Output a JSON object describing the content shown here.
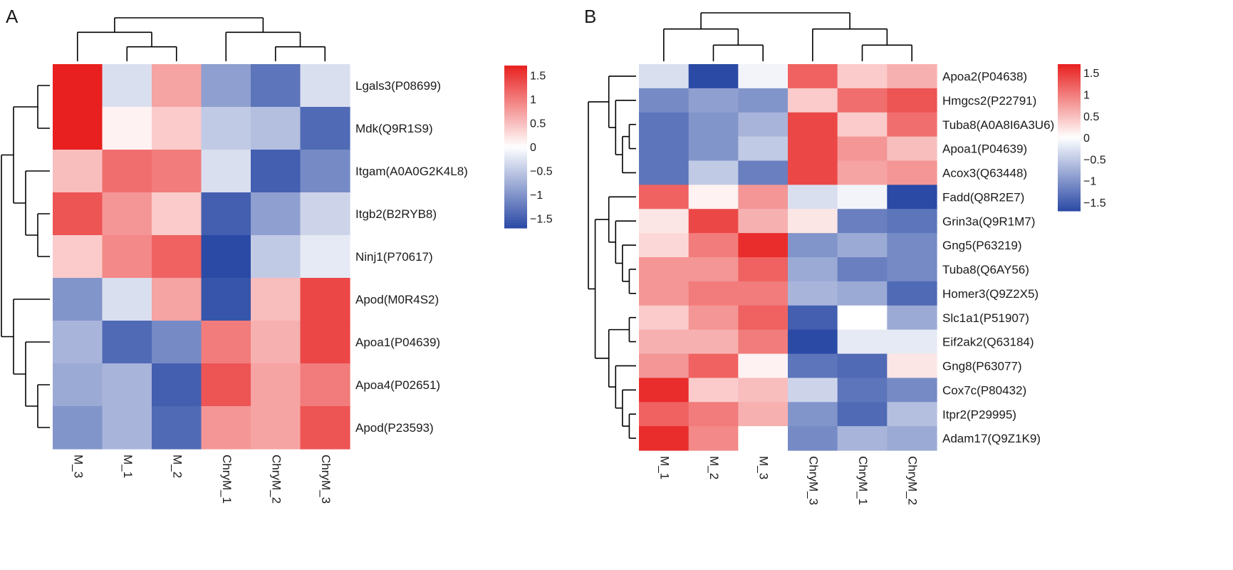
{
  "colors": {
    "low": "#2b4aa5",
    "mid": "#ffffff",
    "high": "#e8201f"
  },
  "chart_data": [
    {
      "type": "heatmap",
      "panel_label": "A",
      "columns": [
        "M_3",
        "M_1",
        "M_2",
        "ChryM_1",
        "ChryM_2",
        "ChryM_3"
      ],
      "rows": [
        "Lgals3(P08699)",
        "Mdk(Q9R1S9)",
        "Itgam(A0A0G2K4L8)",
        "Itgb2(B2RYB8)",
        "Ninj1(P70617)",
        "Apod(M0R4S2)",
        "Apoa1(P04639)",
        "Apoa4(P02651)",
        "Apod(P23593)"
      ],
      "values": [
        [
          1.7,
          -0.3,
          0.7,
          -0.9,
          -1.3,
          -0.3
        ],
        [
          1.7,
          0.1,
          0.4,
          -0.5,
          -0.6,
          -1.4
        ],
        [
          0.5,
          1.1,
          1.0,
          -0.3,
          -1.5,
          -1.1
        ],
        [
          1.3,
          0.8,
          0.4,
          -1.5,
          -0.9,
          -0.4
        ],
        [
          0.4,
          0.9,
          1.2,
          -1.7,
          -0.5,
          -0.2
        ],
        [
          -1.0,
          -0.3,
          0.7,
          -1.6,
          0.5,
          1.4
        ],
        [
          -0.7,
          -1.4,
          -1.1,
          1.0,
          0.6,
          1.4
        ],
        [
          -0.8,
          -0.7,
          -1.5,
          1.3,
          0.7,
          1.0
        ],
        [
          -1.0,
          -0.7,
          -1.4,
          0.8,
          0.7,
          1.3
        ]
      ],
      "col_tree": [
        [
          [
            0,
            [
              1,
              2
            ]
          ],
          [
            3,
            [
              4,
              5
            ]
          ]
        ]
      ],
      "row_tree": [
        [
          [
            [
              0,
              1
            ],
            [
              2,
              [
                3,
                4
              ]
            ]
          ],
          [
            5,
            [
              6,
              [
                7,
                8
              ]
            ]
          ]
        ]
      ],
      "legend": {
        "ticks": [
          "1.5",
          "1",
          "0.5",
          "0",
          "−0.5",
          "−1",
          "−1.5"
        ],
        "tick_values": [
          1.5,
          1,
          0.5,
          0,
          -0.5,
          -1,
          -1.5
        ],
        "range": [
          -1.7,
          1.7
        ]
      }
    },
    {
      "type": "heatmap",
      "panel_label": "B",
      "columns": [
        "M_1",
        "M_2",
        "M_3",
        "ChryM_3",
        "ChryM_1",
        "ChryM_2"
      ],
      "rows": [
        "Apoa2(P04638)",
        "Hmgcs2(P22791)",
        "Tuba8(A0A8I6A3U6)",
        "Apoa1(P04639)",
        "Acox3(Q63448)",
        "Fadd(Q8R2E7)",
        "Grin3a(Q9R1M7)",
        "Gng5(P63219)",
        "Tuba8(Q6AY56)",
        "Homer3(Q9Z2X5)",
        "Slc1a1(P51907)",
        "Eif2ak2(Q63184)",
        "Gng8(P63077)",
        "Cox7c(P80432)",
        "Itpr2(P29995)",
        "Adam17(Q9Z1K9)"
      ],
      "values": [
        [
          -0.3,
          -1.7,
          -0.1,
          1.2,
          0.4,
          0.6
        ],
        [
          -1.1,
          -0.9,
          -1.0,
          0.4,
          1.1,
          1.3
        ],
        [
          -1.3,
          -1.0,
          -0.7,
          1.4,
          0.4,
          1.1
        ],
        [
          -1.3,
          -1.0,
          -0.5,
          1.4,
          0.8,
          0.5
        ],
        [
          -1.3,
          -0.5,
          -1.2,
          1.4,
          0.7,
          0.8
        ],
        [
          1.2,
          0.1,
          0.8,
          -0.3,
          -0.1,
          -1.7
        ],
        [
          0.2,
          1.4,
          0.6,
          0.2,
          -1.2,
          -1.3
        ],
        [
          0.3,
          1.0,
          1.6,
          -1.0,
          -0.8,
          -1.1
        ],
        [
          0.8,
          0.8,
          1.2,
          -0.8,
          -1.2,
          -1.1
        ],
        [
          0.8,
          1.0,
          1.0,
          -0.7,
          -0.8,
          -1.4
        ],
        [
          0.4,
          0.8,
          1.2,
          -1.5,
          0.0,
          -0.8
        ],
        [
          0.6,
          0.6,
          1.0,
          -1.7,
          -0.2,
          -0.2
        ],
        [
          0.8,
          1.2,
          0.1,
          -1.3,
          -1.4,
          0.2
        ],
        [
          1.6,
          0.4,
          0.5,
          -0.4,
          -1.3,
          -1.1
        ],
        [
          1.2,
          1.0,
          0.6,
          -1.0,
          -1.4,
          -0.6
        ],
        [
          1.6,
          0.9,
          0.0,
          -1.1,
          -0.7,
          -0.8
        ]
      ],
      "col_tree": [
        [
          [
            0,
            [
              1,
              2
            ]
          ],
          [
            3,
            [
              4,
              5
            ]
          ]
        ]
      ],
      "row_tree": [
        [
          [
            0,
            [
              1,
              [
                [
                  2,
                  3
                ],
                4
              ]
            ]
          ],
          [
            [
              [
                5,
                [
                  6,
                  [
                    7,
                    [
                      8,
                      9
                    ]
                  ]
                ]
              ]
            ],
            [
              [
                10,
                11
              ],
              [
                12,
                [
                  13,
                  [
                    14,
                    15
                  ]
                ]
              ]
            ]
          ]
        ]
      ],
      "legend": {
        "ticks": [
          "1.5",
          "1",
          "0.5",
          "0",
          "−0.5",
          "−1",
          "−1.5"
        ],
        "tick_values": [
          1.5,
          1,
          0.5,
          0,
          -0.5,
          -1,
          -1.5
        ],
        "range": [
          -1.7,
          1.7
        ]
      }
    }
  ]
}
